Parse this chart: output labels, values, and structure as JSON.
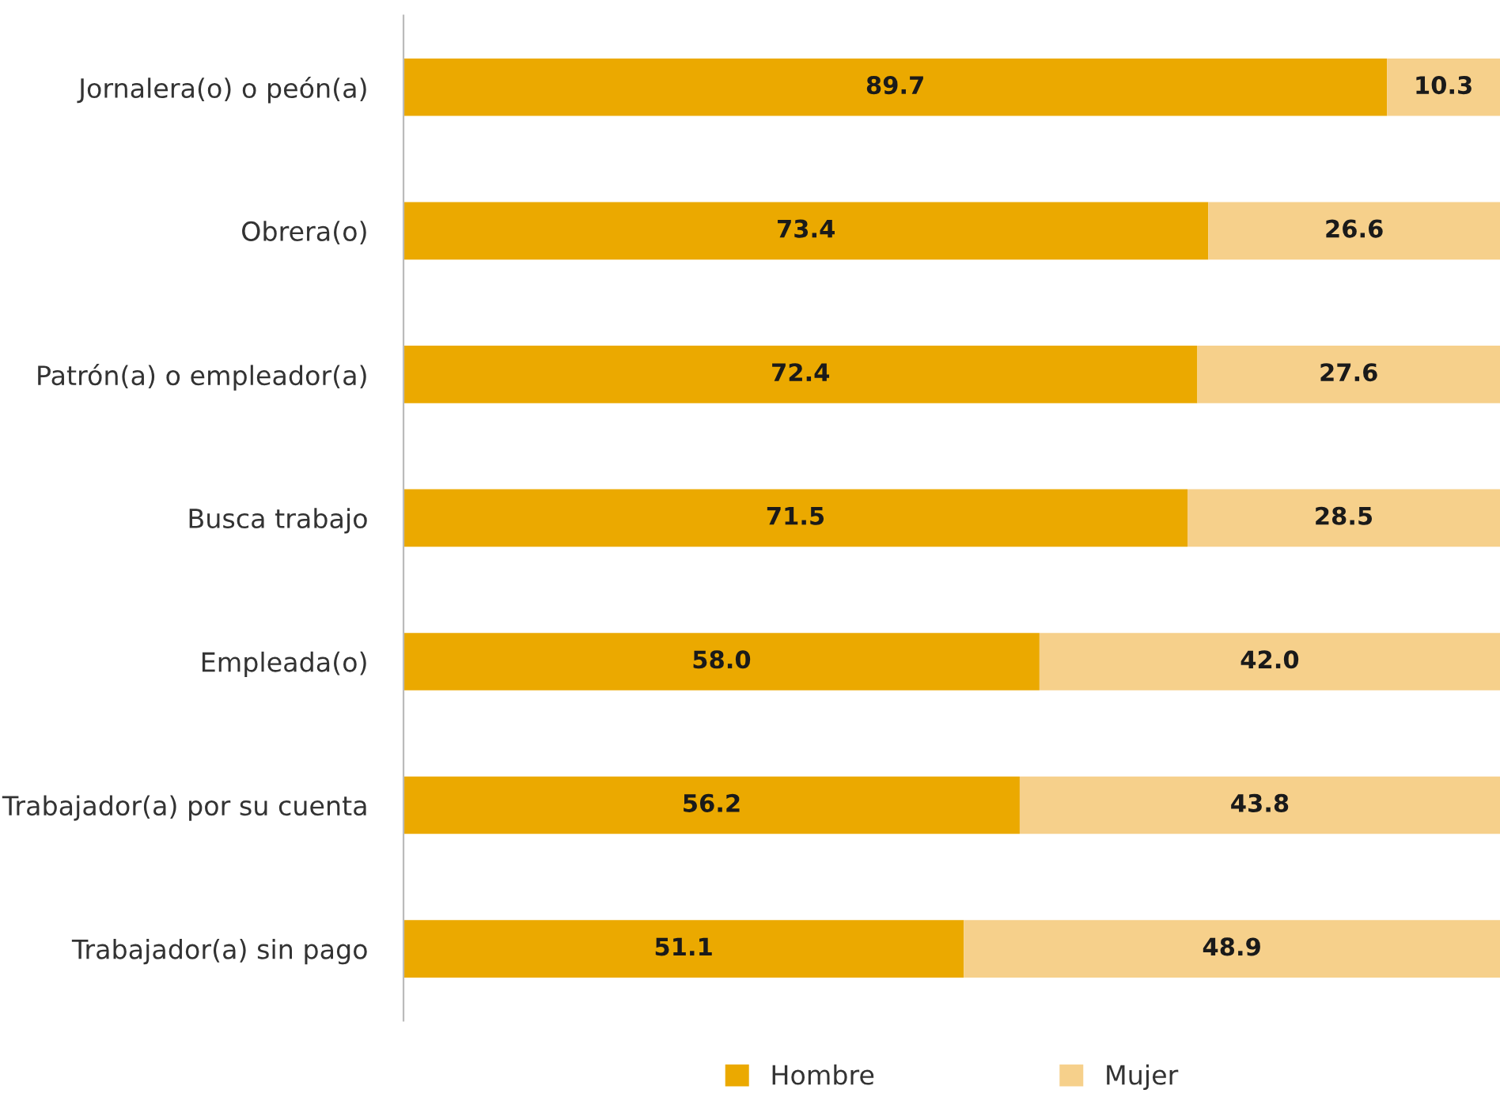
{
  "chart_data": {
    "type": "bar",
    "orientation": "horizontal",
    "stacked": true,
    "legend": "bottom",
    "grid": false,
    "categories": [
      "Jornalera(o) o peón(a)",
      "Obrera(o)",
      "Patrón(a) o empleador(a)",
      "Busca trabajo",
      "Empleada(o)",
      "Trabajador(a) por su cuenta",
      "Trabajador(a) sin pago"
    ],
    "series": [
      {
        "name": "Hombre",
        "color": "#eba900",
        "values": [
          89.7,
          73.4,
          72.4,
          71.5,
          58.0,
          56.2,
          51.1
        ],
        "value_labels": [
          "89.7",
          "73.4",
          "72.4",
          "71.5",
          "58.0",
          "56.2",
          "51.1"
        ]
      },
      {
        "name": "Mujer",
        "color": "#f6d08b",
        "values": [
          10.3,
          26.6,
          27.6,
          28.5,
          42.0,
          43.8,
          48.9
        ],
        "value_labels": [
          "10.3",
          "26.6",
          "27.6",
          "28.5",
          "42.0",
          "43.8",
          "48.9"
        ]
      }
    ]
  }
}
